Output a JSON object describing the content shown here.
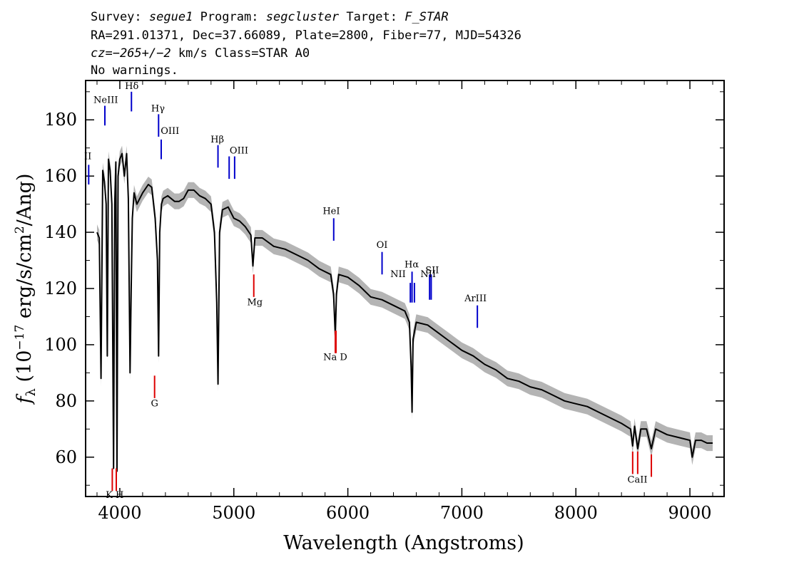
{
  "header": {
    "survey_label": "Survey:",
    "survey": "segue1",
    "program_label": "Program:",
    "program": "segcluster",
    "target_label": "Target:",
    "target": "F_STAR",
    "line2": "RA=291.01371, Dec=37.66089, Plate=2800, Fiber=77, MJD=54326",
    "cz_label": "cz=",
    "cz_value": "−265+/−2",
    "cz_rest": " km/s Class=STAR A0",
    "line4": "No warnings."
  },
  "colors": {
    "emission": "#0000cc",
    "absorption": "#dd0000",
    "spectrum": "#000000",
    "error_band": "#b4b4b4"
  },
  "chart_data": {
    "type": "line",
    "xlabel": "Wavelength (Angstroms)",
    "ylabel": "fλ (10⁻¹⁷ erg/s/cm²/Ang)",
    "ylabel_parts": {
      "symbol": "f",
      "subscript": "λ",
      "open": " (10",
      "exp": "−17",
      "mid": " erg/s/cm",
      "exp2": "2",
      "close": "/Ang)"
    },
    "xlim": [
      3700,
      9300
    ],
    "ylim": [
      46,
      194
    ],
    "x_ticks": [
      4000,
      5000,
      6000,
      7000,
      8000,
      9000
    ],
    "y_ticks": [
      60,
      80,
      100,
      120,
      140,
      160,
      180
    ],
    "x_tick_labels": [
      "4000",
      "5000",
      "6000",
      "7000",
      "8000",
      "9000"
    ],
    "y_tick_labels": [
      "60",
      "80",
      "100",
      "120",
      "140",
      "160",
      "180"
    ],
    "grid": false,
    "series": [
      {
        "x": [
          3800,
          3820,
          3835,
          3850,
          3865,
          3880,
          3890,
          3900,
          3915,
          3930,
          3945,
          3955,
          3965,
          3975,
          3985,
          4000,
          4020,
          4040,
          4060,
          4075,
          4090,
          4100,
          4110,
          4125,
          4150,
          4200,
          4250,
          4280,
          4310,
          4330,
          4340,
          4350,
          4365,
          4380,
          4420,
          4480,
          4520,
          4560,
          4600,
          4650,
          4700,
          4750,
          4800,
          4830,
          4850,
          4861,
          4875,
          4900,
          4950,
          5000,
          5050,
          5100,
          5150,
          5167,
          5185,
          5250,
          5350,
          5450,
          5550,
          5650,
          5750,
          5850,
          5875,
          5890,
          5900,
          5920,
          6000,
          6100,
          6200,
          6300,
          6400,
          6500,
          6540,
          6555,
          6563,
          6572,
          6600,
          6700,
          6800,
          6900,
          7000,
          7100,
          7200,
          7300,
          7400,
          7500,
          7600,
          7700,
          7800,
          7900,
          8000,
          8100,
          8200,
          8300,
          8400,
          8480,
          8498,
          8515,
          8542,
          8570,
          8620,
          8662,
          8700,
          8800,
          8900,
          9000,
          9020,
          9050,
          9100,
          9150,
          9200
        ],
        "y": [
          140,
          138,
          88,
          162,
          158,
          150,
          96,
          166,
          162,
          150,
          56,
          150,
          165,
          55,
          160,
          166,
          168,
          160,
          168,
          152,
          90,
          120,
          145,
          154,
          150,
          154,
          157,
          156,
          145,
          130,
          96,
          140,
          150,
          152,
          153,
          151,
          151,
          152,
          155,
          155,
          153,
          152,
          150,
          140,
          115,
          86,
          140,
          148,
          149,
          145,
          144,
          142,
          139,
          128,
          138,
          138,
          135,
          134,
          132,
          130,
          127,
          125,
          118,
          103,
          118,
          125,
          124,
          121,
          117,
          116,
          114,
          112,
          108,
          92,
          76,
          102,
          108,
          107,
          104,
          101,
          98,
          96,
          93,
          91,
          88,
          87,
          85,
          84,
          82,
          80,
          79,
          78,
          76,
          74,
          72,
          70,
          64,
          71,
          63,
          70,
          70,
          63,
          70,
          68,
          67,
          66,
          60,
          66,
          66,
          65,
          65
        ]
      }
    ],
    "error_band_halfwidth": 2.8,
    "spectral_lines": [
      {
        "label": "NeIII",
        "wavelength": 3869,
        "color": "emission",
        "y_top": 185,
        "y_bottom": 178
      },
      {
        "label": "Hδ",
        "wavelength": 4102,
        "color": "emission",
        "y_top": 190,
        "y_bottom": 183
      },
      {
        "label": "Hγ",
        "wavelength": 4340,
        "color": "emission",
        "y_top": 182,
        "y_bottom": 174
      },
      {
        "label": "OIII",
        "wavelength": 4363,
        "color": "emission",
        "y_top": 173,
        "y_bottom": 166
      },
      {
        "label": "OII",
        "wavelength": 3727,
        "color": "emission",
        "y_top": 164,
        "y_bottom": 157
      },
      {
        "label": "Hβ",
        "wavelength": 4861,
        "color": "emission",
        "y_top": 171,
        "y_bottom": 163
      },
      {
        "label": "OIII",
        "wavelength": 4959,
        "color": "emission",
        "y_top": 167,
        "y_bottom": 159
      },
      {
        "label": "OIII",
        "wavelength": 5007,
        "color": "emission",
        "y_top": 167,
        "y_bottom": 159
      },
      {
        "label": "HeI",
        "wavelength": 5876,
        "color": "emission",
        "y_top": 145,
        "y_bottom": 137
      },
      {
        "label": "OI",
        "wavelength": 6300,
        "color": "emission",
        "y_top": 133,
        "y_bottom": 125
      },
      {
        "label": "NII",
        "wavelength": 6548,
        "color": "emission",
        "y_top": 122,
        "y_bottom": 115
      },
      {
        "label": "Hα",
        "wavelength": 6563,
        "color": "emission",
        "y_top": 126,
        "y_bottom": 115
      },
      {
        "label": "NII",
        "wavelength": 6584,
        "color": "emission",
        "y_top": 122,
        "y_bottom": 115
      },
      {
        "label": "SII",
        "wavelength": 6717,
        "color": "emission",
        "y_top": 125,
        "y_bottom": 116
      },
      {
        "label": "SII",
        "wavelength": 6731,
        "color": "emission",
        "y_top": 125,
        "y_bottom": 116
      },
      {
        "label": "ArIII",
        "wavelength": 7136,
        "color": "emission",
        "y_top": 114,
        "y_bottom": 106
      },
      {
        "label": "K",
        "wavelength": 3934,
        "color": "absorption",
        "y_top": 56,
        "y_bottom": 48
      },
      {
        "label": "H",
        "wavelength": 3969,
        "color": "absorption",
        "y_top": 56,
        "y_bottom": 48
      },
      {
        "label": "G",
        "wavelength": 4305,
        "color": "absorption",
        "y_top": 89,
        "y_bottom": 81
      },
      {
        "label": "Mg",
        "wavelength": 5175,
        "color": "absorption",
        "y_top": 125,
        "y_bottom": 117
      },
      {
        "label": "Na",
        "wavelength": 5890,
        "color": "absorption",
        "y_top": 105,
        "y_bottom": 97
      },
      {
        "label": "D",
        "wavelength": 5896,
        "color": "absorption",
        "y_top": 105,
        "y_bottom": 97
      },
      {
        "label": "CaII",
        "wavelength": 8498,
        "color": "absorption",
        "y_top": 62,
        "y_bottom": 54
      },
      {
        "label": "CaII",
        "wavelength": 8542,
        "color": "absorption",
        "y_top": 62,
        "y_bottom": 54
      },
      {
        "label": "CaII",
        "wavelength": 8662,
        "color": "absorption",
        "y_top": 61,
        "y_bottom": 53
      }
    ],
    "line_text_labels": [
      {
        "text": "NeIII",
        "x": 3877,
        "y": 186
      },
      {
        "text": "Hδ",
        "x": 4105,
        "y": 191
      },
      {
        "text": "Hγ",
        "x": 4335,
        "y": 183
      },
      {
        "text": "OIII",
        "x": 4440,
        "y": 175
      },
      {
        "text": "II",
        "x": 3720,
        "y": 166
      },
      {
        "text": "Hβ",
        "x": 4855,
        "y": 172
      },
      {
        "text": "OIII",
        "x": 5045,
        "y": 168
      },
      {
        "text": "HeI",
        "x": 5855,
        "y": 146.5
      },
      {
        "text": "OI",
        "x": 6300,
        "y": 134.5
      },
      {
        "text": "NII",
        "x": 6440,
        "y": 124
      },
      {
        "text": "Hα",
        "x": 6560,
        "y": 127.5
      },
      {
        "text": "NII",
        "x": 6705,
        "y": 124
      },
      {
        "text": "SII",
        "x": 6740,
        "y": 125.5
      },
      {
        "text": "ArIII",
        "x": 7120,
        "y": 115.5
      },
      {
        "text": "K H",
        "x": 3955,
        "y": 45.5
      },
      {
        "text": "G",
        "x": 4305,
        "y": 78
      },
      {
        "text": "Mg",
        "x": 5185,
        "y": 114
      },
      {
        "text": "Na  D",
        "x": 5890,
        "y": 94.5
      },
      {
        "text": "CaII",
        "x": 8540,
        "y": 51
      }
    ]
  }
}
